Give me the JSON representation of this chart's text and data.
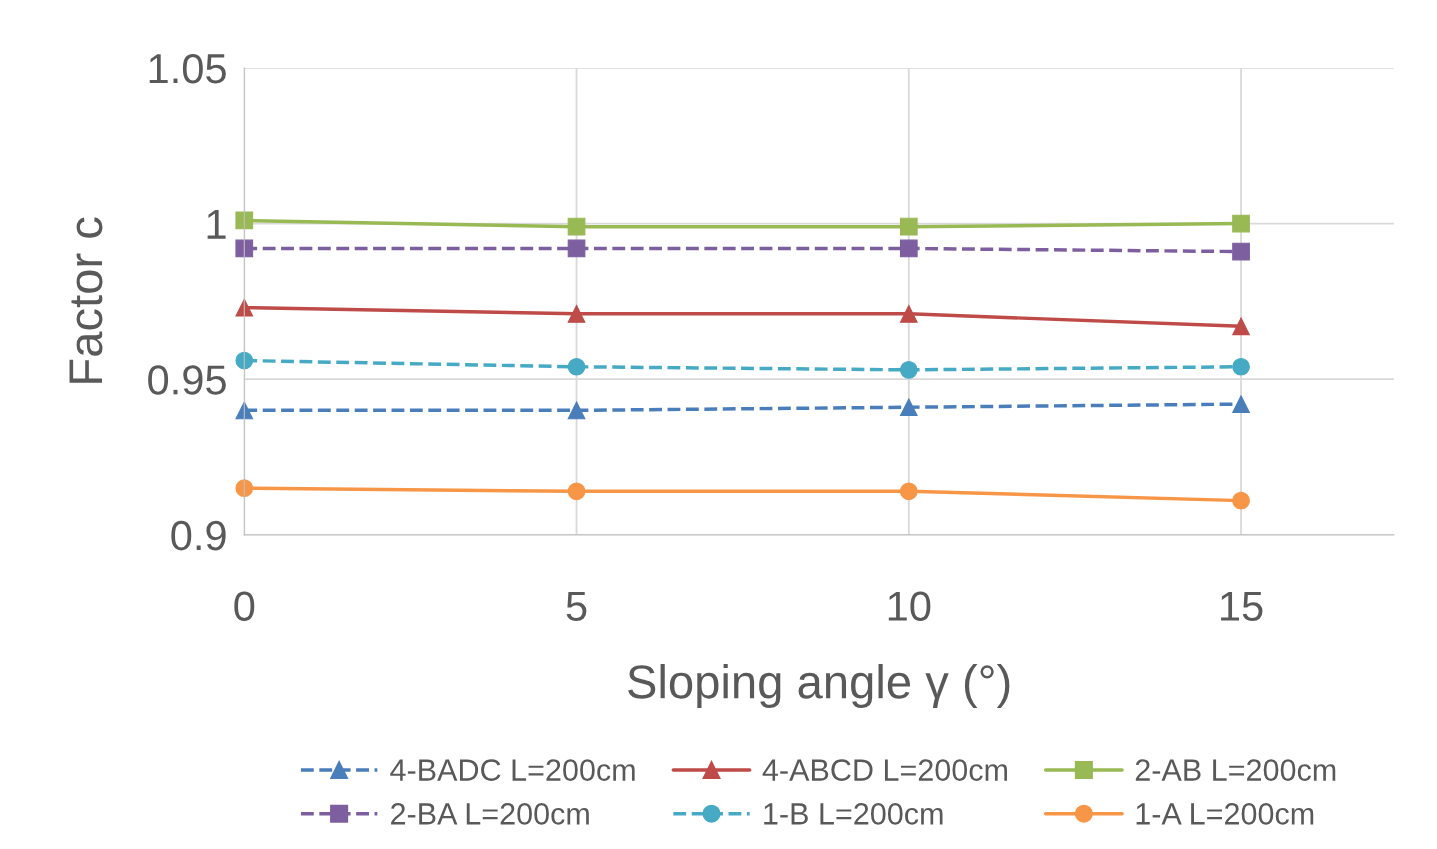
{
  "chart_data": {
    "type": "line",
    "xlabel": "Sloping angle γ (°)",
    "ylabel": "Factor c",
    "x": [
      0,
      5,
      10,
      15
    ],
    "xlim": [
      0,
      17.3
    ],
    "xticks": [
      0,
      5,
      10,
      15
    ],
    "ylim": [
      0.9,
      1.05
    ],
    "yticks": [
      {
        "value": 0.9,
        "label": "0.9"
      },
      {
        "value": 0.95,
        "label": "0.95"
      },
      {
        "value": 1.0,
        "label": "1"
      },
      {
        "value": 1.05,
        "label": "1.05"
      }
    ],
    "grid": true,
    "legend": "bottom",
    "series": [
      {
        "name": "4-BADC L=200cm",
        "color": "#4a7ebb",
        "marker": "triangle",
        "line_style": "dashed",
        "values": [
          0.94,
          0.94,
          0.941,
          0.942
        ]
      },
      {
        "name": "4-ABCD L=200cm",
        "color": "#be4b48",
        "marker": "triangle",
        "line_style": "solid",
        "values": [
          0.973,
          0.971,
          0.971,
          0.967
        ]
      },
      {
        "name": "2-AB L=200cm",
        "color": "#98b954",
        "marker": "square",
        "line_style": "solid",
        "values": [
          1.001,
          0.999,
          0.999,
          1.0
        ]
      },
      {
        "name": "2-BA L=200cm",
        "color": "#7d5fa0",
        "marker": "square",
        "line_style": "dashed",
        "values": [
          0.992,
          0.992,
          0.992,
          0.991
        ]
      },
      {
        "name": "1-B L=200cm",
        "color": "#46aac5",
        "marker": "circle",
        "line_style": "dashed",
        "values": [
          0.956,
          0.954,
          0.953,
          0.954
        ]
      },
      {
        "name": "1-A L=200cm",
        "color": "#f79646",
        "marker": "circle",
        "line_style": "solid",
        "values": [
          0.915,
          0.914,
          0.914,
          0.911
        ]
      }
    ]
  }
}
